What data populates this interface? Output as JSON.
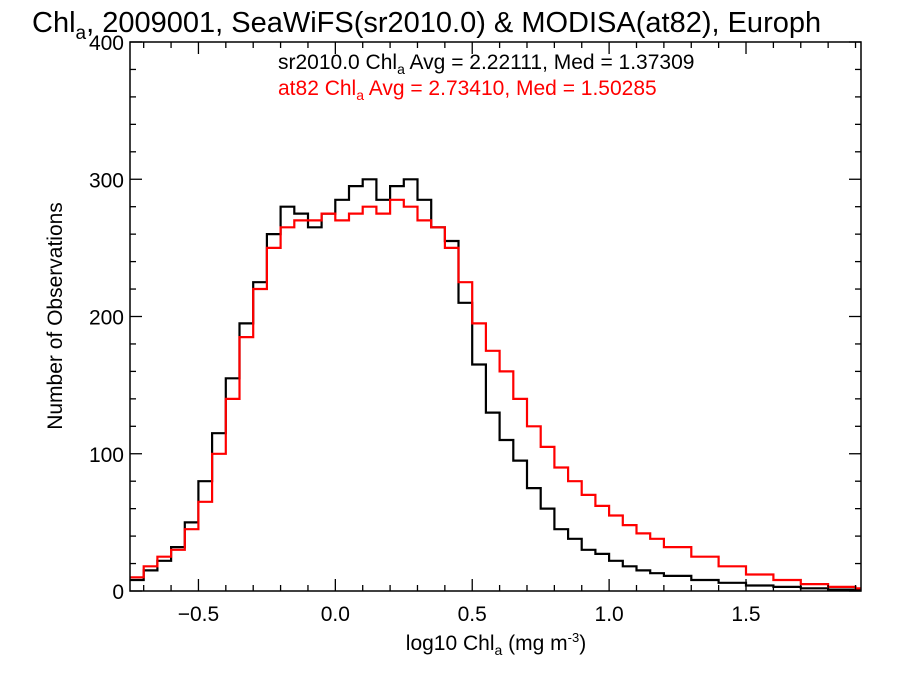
{
  "chart_data": {
    "type": "line",
    "step": true,
    "title": {
      "prefix": "Chl",
      "sub": "a",
      "rest": ", 2009001, SeaWiFS(sr2010.0) & MODISA(at82), Europh"
    },
    "xlabel": {
      "prefix": "log10 Chl",
      "sub": "a",
      "mid": " (mg m",
      "sup": "-3",
      "end": ")"
    },
    "ylabel": "Number of Observations",
    "xlim": [
      -0.75,
      1.92
    ],
    "ylim": [
      0,
      400
    ],
    "x_ticks": [
      -0.5,
      0.0,
      0.5,
      1.0,
      1.5
    ],
    "x_tick_labels": [
      "−0.5",
      "0.0",
      "0.5",
      "1.0",
      "1.5"
    ],
    "y_ticks": [
      0,
      100,
      200,
      300,
      400
    ],
    "y_tick_labels": [
      "0",
      "100",
      "200",
      "300",
      "400"
    ],
    "legend": [
      {
        "prefix": "sr2010.0 Chl",
        "sub": "a",
        "rest": " Avg = 2.22111, Med = 1.37309",
        "color": "#000000"
      },
      {
        "prefix": "at82 Chl",
        "sub": "a",
        "rest": " Avg = 2.73410, Med = 1.50285",
        "color": "#ff0000"
      }
    ],
    "series": [
      {
        "name": "sr2010.0",
        "color": "#000000",
        "x": [
          -0.75,
          -0.7,
          -0.65,
          -0.6,
          -0.55,
          -0.5,
          -0.45,
          -0.4,
          -0.35,
          -0.3,
          -0.25,
          -0.2,
          -0.15,
          -0.1,
          -0.05,
          0.0,
          0.05,
          0.1,
          0.15,
          0.2,
          0.25,
          0.3,
          0.35,
          0.4,
          0.45,
          0.5,
          0.55,
          0.6,
          0.65,
          0.7,
          0.75,
          0.8,
          0.85,
          0.9,
          0.95,
          1.0,
          1.05,
          1.1,
          1.15,
          1.2,
          1.3,
          1.4,
          1.5,
          1.6,
          1.7,
          1.8,
          1.9
        ],
        "y": [
          8,
          15,
          22,
          32,
          50,
          80,
          115,
          155,
          195,
          225,
          260,
          280,
          275,
          265,
          275,
          285,
          295,
          300,
          285,
          295,
          300,
          285,
          265,
          255,
          210,
          165,
          130,
          110,
          95,
          75,
          60,
          45,
          38,
          30,
          27,
          22,
          18,
          15,
          13,
          11,
          8,
          6,
          4,
          3,
          2,
          1,
          1
        ]
      },
      {
        "name": "at82",
        "color": "#ff0000",
        "x": [
          -0.75,
          -0.7,
          -0.65,
          -0.6,
          -0.55,
          -0.5,
          -0.45,
          -0.4,
          -0.35,
          -0.3,
          -0.25,
          -0.2,
          -0.15,
          -0.1,
          -0.05,
          0.0,
          0.05,
          0.1,
          0.15,
          0.2,
          0.25,
          0.3,
          0.35,
          0.4,
          0.45,
          0.5,
          0.55,
          0.6,
          0.65,
          0.7,
          0.75,
          0.8,
          0.85,
          0.9,
          0.95,
          1.0,
          1.05,
          1.1,
          1.15,
          1.2,
          1.3,
          1.4,
          1.5,
          1.6,
          1.7,
          1.8,
          1.9
        ],
        "y": [
          10,
          18,
          25,
          30,
          45,
          65,
          100,
          140,
          185,
          220,
          250,
          265,
          270,
          270,
          275,
          270,
          275,
          280,
          275,
          285,
          280,
          270,
          265,
          250,
          225,
          195,
          175,
          160,
          140,
          120,
          105,
          90,
          80,
          70,
          62,
          55,
          48,
          42,
          38,
          32,
          25,
          18,
          12,
          8,
          5,
          3,
          2
        ]
      }
    ]
  }
}
